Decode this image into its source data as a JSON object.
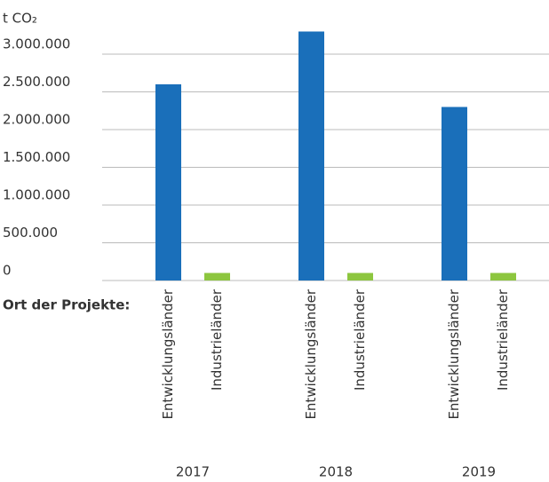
{
  "chart_data": {
    "type": "bar",
    "y_label": "t CO₂",
    "x_label": "Ort der Projekte:",
    "categories": [
      "2017",
      "2018",
      "2019"
    ],
    "series": [
      {
        "name": "Entwicklungsländer",
        "color": "#1a6fba",
        "values": [
          2600000,
          3300000,
          2300000
        ]
      },
      {
        "name": "Industrieländer",
        "color": "#8dc63f",
        "values": [
          100000,
          100000,
          100000
        ]
      }
    ],
    "ylim": [
      0,
      3500000
    ],
    "yticks": [
      0,
      {
        "value": 500000,
        "label": "500.000"
      },
      {
        "value": 1000000,
        "label": "1.000.000"
      },
      {
        "value": 1500000,
        "label": "1.500.000"
      },
      {
        "value": 2000000,
        "label": "2.000.000"
      },
      {
        "value": 2500000,
        "label": "2.500.000"
      },
      {
        "value": 3000000,
        "label": "3.000.000"
      }
    ],
    "grid": true
  }
}
